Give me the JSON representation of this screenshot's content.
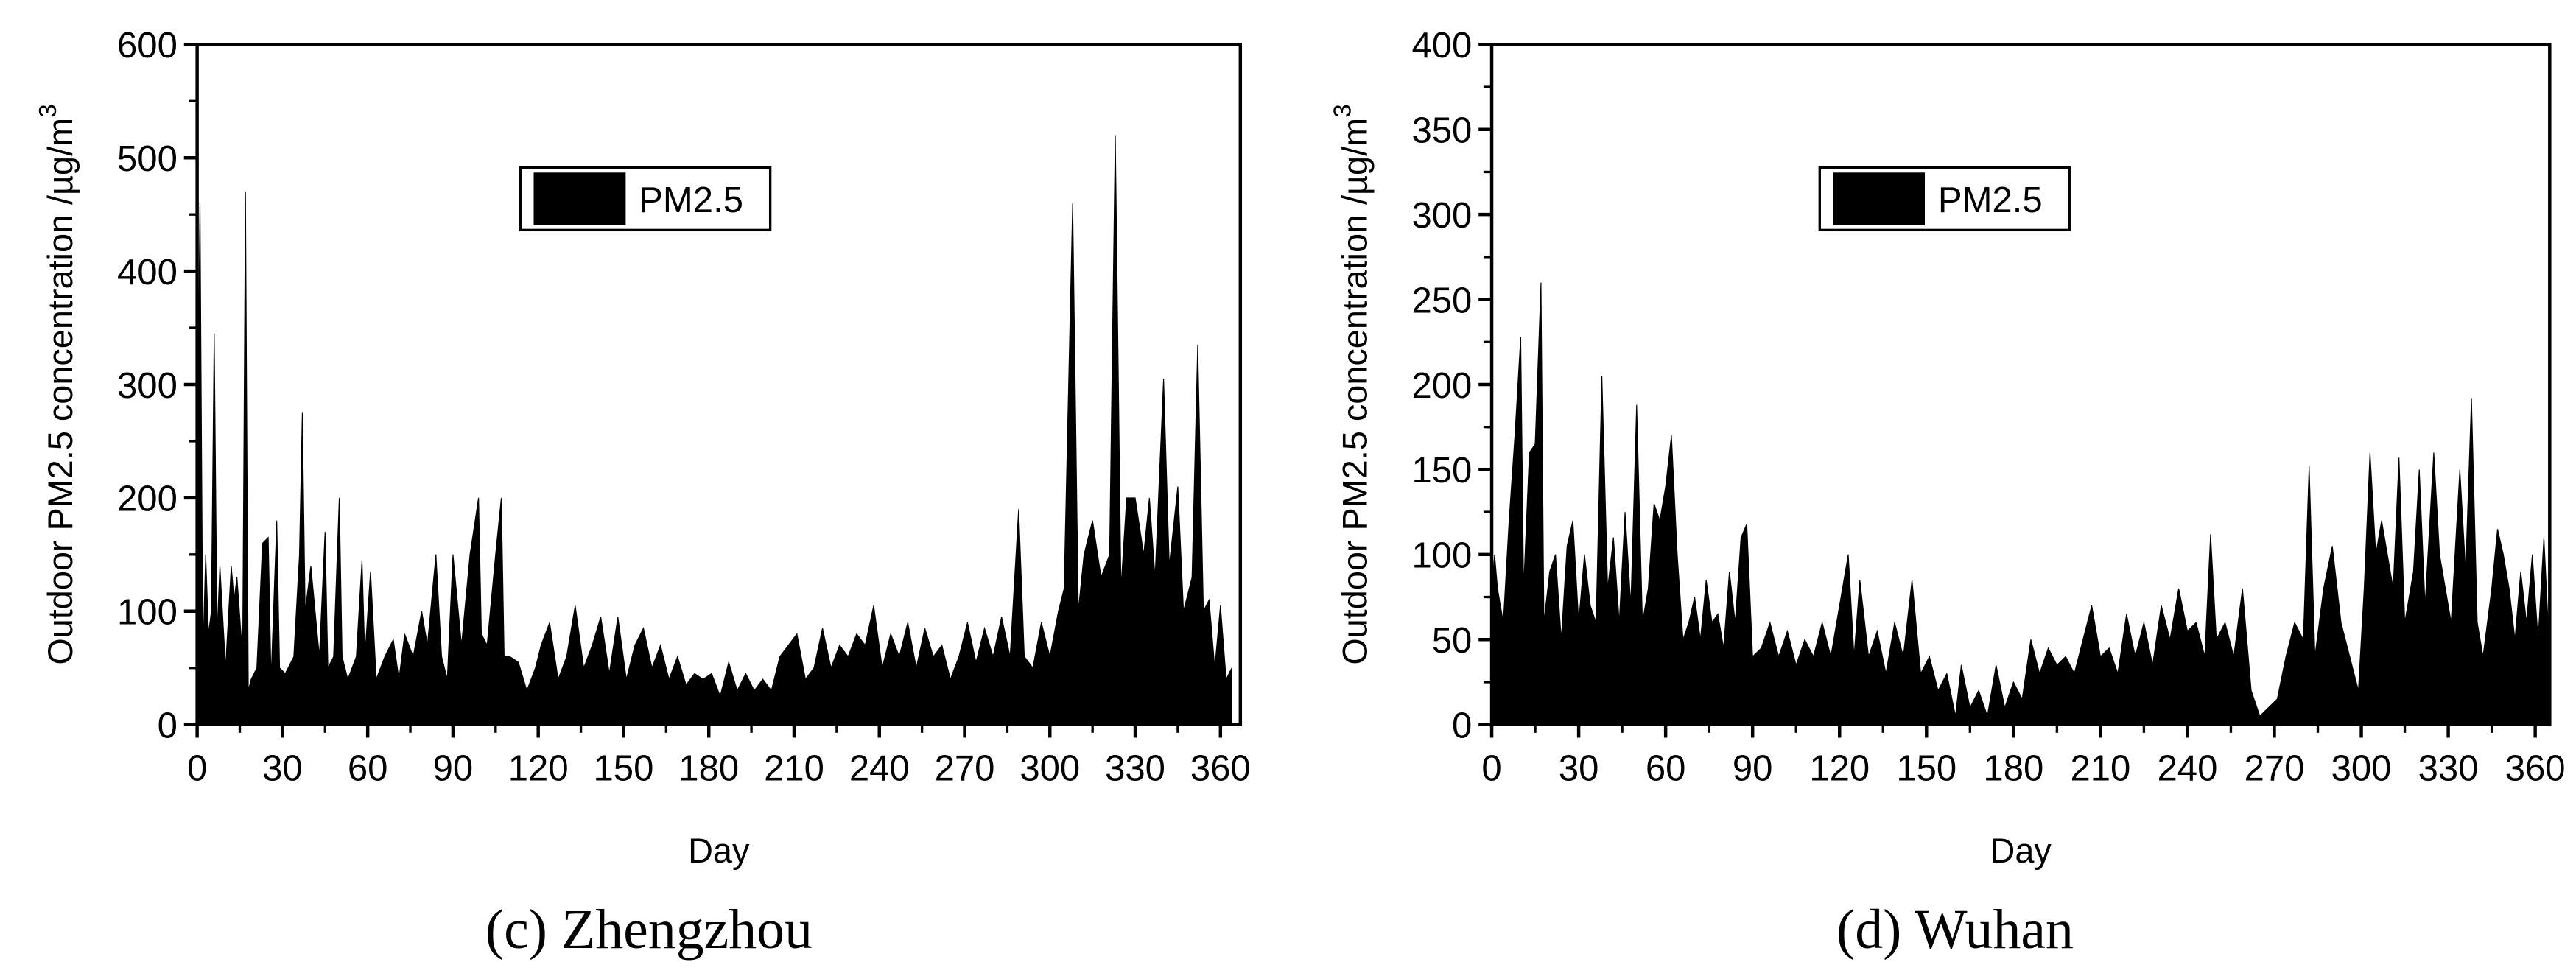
{
  "chart_data": [
    {
      "type": "area",
      "caption": "(c) Zhengzhou",
      "x_label": "Day",
      "y_label": "Outdoor PM2.5 concentration /µg/m",
      "y_label_sup": "3",
      "xlim": [
        0,
        367
      ],
      "xticks": [
        0,
        30,
        60,
        90,
        120,
        150,
        180,
        210,
        240,
        270,
        300,
        330,
        360
      ],
      "ylim": [
        0,
        600
      ],
      "yticks": [
        0,
        100,
        200,
        300,
        400,
        500,
        600
      ],
      "legend_position": "upper center",
      "x": [
        0,
        1,
        2,
        3,
        4,
        5,
        6,
        7,
        8,
        10,
        12,
        13,
        14,
        16,
        17,
        18,
        19,
        21,
        23,
        25,
        26,
        28,
        29,
        31,
        34,
        36,
        37,
        38,
        40,
        43,
        45,
        46,
        48,
        50,
        51,
        53,
        56,
        58,
        59,
        61,
        63,
        66,
        69,
        71,
        73,
        76,
        79,
        81,
        84,
        86,
        88,
        90,
        93,
        96,
        99,
        100,
        102,
        105,
        107,
        108,
        110,
        113,
        116,
        119,
        121,
        124,
        127,
        130,
        133,
        136,
        139,
        142,
        145,
        148,
        151,
        154,
        157,
        160,
        163,
        166,
        169,
        172,
        175,
        178,
        181,
        184,
        187,
        190,
        193,
        196,
        199,
        202,
        205,
        208,
        211,
        214,
        217,
        220,
        223,
        226,
        229,
        232,
        235,
        238,
        241,
        244,
        247,
        250,
        253,
        256,
        259,
        262,
        265,
        268,
        271,
        274,
        277,
        280,
        283,
        286,
        289,
        291,
        294,
        297,
        300,
        303,
        305,
        308,
        310,
        312,
        315,
        318,
        321,
        323,
        325,
        327,
        330,
        333,
        335,
        337,
        340,
        342,
        345,
        347,
        350,
        352,
        354,
        356,
        358,
        360,
        362,
        364
      ],
      "series": [
        {
          "name": "PM2.5",
          "color": "#000000",
          "values": [
            230,
            460,
            60,
            150,
            80,
            100,
            345,
            80,
            140,
            50,
            140,
            110,
            130,
            60,
            470,
            30,
            40,
            50,
            160,
            165,
            40,
            180,
            50,
            45,
            60,
            150,
            275,
            100,
            140,
            60,
            170,
            50,
            60,
            200,
            60,
            40,
            60,
            145,
            60,
            135,
            40,
            60,
            75,
            40,
            80,
            60,
            100,
            70,
            150,
            60,
            40,
            150,
            70,
            150,
            200,
            80,
            70,
            150,
            200,
            60,
            60,
            55,
            30,
            50,
            70,
            90,
            40,
            60,
            105,
            50,
            70,
            95,
            45,
            95,
            40,
            70,
            85,
            50,
            70,
            40,
            60,
            35,
            45,
            40,
            45,
            25,
            55,
            30,
            45,
            30,
            40,
            30,
            60,
            70,
            80,
            40,
            50,
            85,
            50,
            70,
            60,
            80,
            70,
            105,
            50,
            80,
            60,
            90,
            50,
            85,
            60,
            70,
            40,
            60,
            90,
            55,
            85,
            60,
            95,
            60,
            190,
            60,
            50,
            90,
            60,
            100,
            120,
            460,
            100,
            150,
            180,
            130,
            150,
            520,
            120,
            200,
            200,
            150,
            200,
            130,
            305,
            140,
            210,
            100,
            130,
            335,
            100,
            110,
            50,
            105,
            40,
            50
          ]
        }
      ]
    },
    {
      "type": "area",
      "caption": "(d) Wuhan",
      "x_label": "Day",
      "y_label": "Outdoor PM2.5 concentration /µg/m",
      "y_label_sup": "3",
      "xlim": [
        0,
        365
      ],
      "xticks": [
        0,
        30,
        60,
        90,
        120,
        150,
        180,
        210,
        240,
        270,
        300,
        330,
        360
      ],
      "ylim": [
        0,
        400
      ],
      "yticks": [
        0,
        50,
        100,
        150,
        200,
        250,
        300,
        350,
        400
      ],
      "legend_position": "upper center",
      "x": [
        0,
        1,
        2,
        4,
        6,
        8,
        10,
        11,
        13,
        15,
        17,
        18,
        20,
        22,
        24,
        26,
        28,
        30,
        32,
        34,
        36,
        38,
        40,
        42,
        44,
        46,
        48,
        50,
        52,
        54,
        56,
        58,
        60,
        62,
        64,
        66,
        68,
        70,
        72,
        74,
        76,
        78,
        80,
        82,
        84,
        86,
        88,
        90,
        93,
        96,
        99,
        102,
        105,
        108,
        111,
        114,
        117,
        120,
        123,
        125,
        127,
        130,
        133,
        136,
        139,
        142,
        145,
        148,
        151,
        154,
        157,
        160,
        162,
        165,
        168,
        171,
        174,
        177,
        180,
        183,
        186,
        189,
        192,
        195,
        198,
        201,
        204,
        207,
        210,
        213,
        216,
        219,
        222,
        225,
        228,
        231,
        234,
        237,
        240,
        243,
        246,
        248,
        250,
        253,
        256,
        259,
        262,
        265,
        268,
        271,
        274,
        277,
        280,
        282,
        284,
        287,
        290,
        293,
        296,
        299,
        301,
        303,
        305,
        307,
        309,
        311,
        313,
        315,
        318,
        320,
        322,
        325,
        327,
        329,
        331,
        334,
        336,
        338,
        340,
        342,
        345,
        347,
        349,
        351,
        353,
        355,
        357,
        359,
        361,
        363,
        365
      ],
      "series": [
        {
          "name": "PM2.5",
          "color": "#000000",
          "values": [
            80,
            100,
            80,
            60,
            120,
            170,
            228,
            80,
            160,
            165,
            260,
            60,
            90,
            100,
            50,
            105,
            120,
            60,
            100,
            70,
            60,
            205,
            80,
            110,
            60,
            125,
            70,
            188,
            60,
            80,
            130,
            120,
            140,
            170,
            100,
            50,
            60,
            75,
            50,
            85,
            60,
            65,
            45,
            90,
            60,
            110,
            118,
            40,
            45,
            60,
            40,
            55,
            35,
            50,
            40,
            60,
            40,
            70,
            100,
            40,
            85,
            40,
            55,
            30,
            60,
            40,
            85,
            30,
            40,
            20,
            30,
            5,
            35,
            10,
            20,
            5,
            35,
            10,
            25,
            15,
            50,
            30,
            45,
            35,
            40,
            30,
            50,
            70,
            40,
            45,
            30,
            65,
            40,
            60,
            35,
            70,
            50,
            80,
            55,
            60,
            40,
            112,
            50,
            60,
            40,
            80,
            20,
            5,
            10,
            15,
            40,
            60,
            50,
            152,
            40,
            80,
            105,
            60,
            40,
            20,
            80,
            160,
            100,
            120,
            100,
            80,
            157,
            60,
            90,
            150,
            70,
            160,
            100,
            80,
            60,
            150,
            90,
            192,
            60,
            40,
            80,
            115,
            100,
            80,
            50,
            90,
            60,
            100,
            50,
            110,
            40
          ]
        }
      ]
    }
  ]
}
